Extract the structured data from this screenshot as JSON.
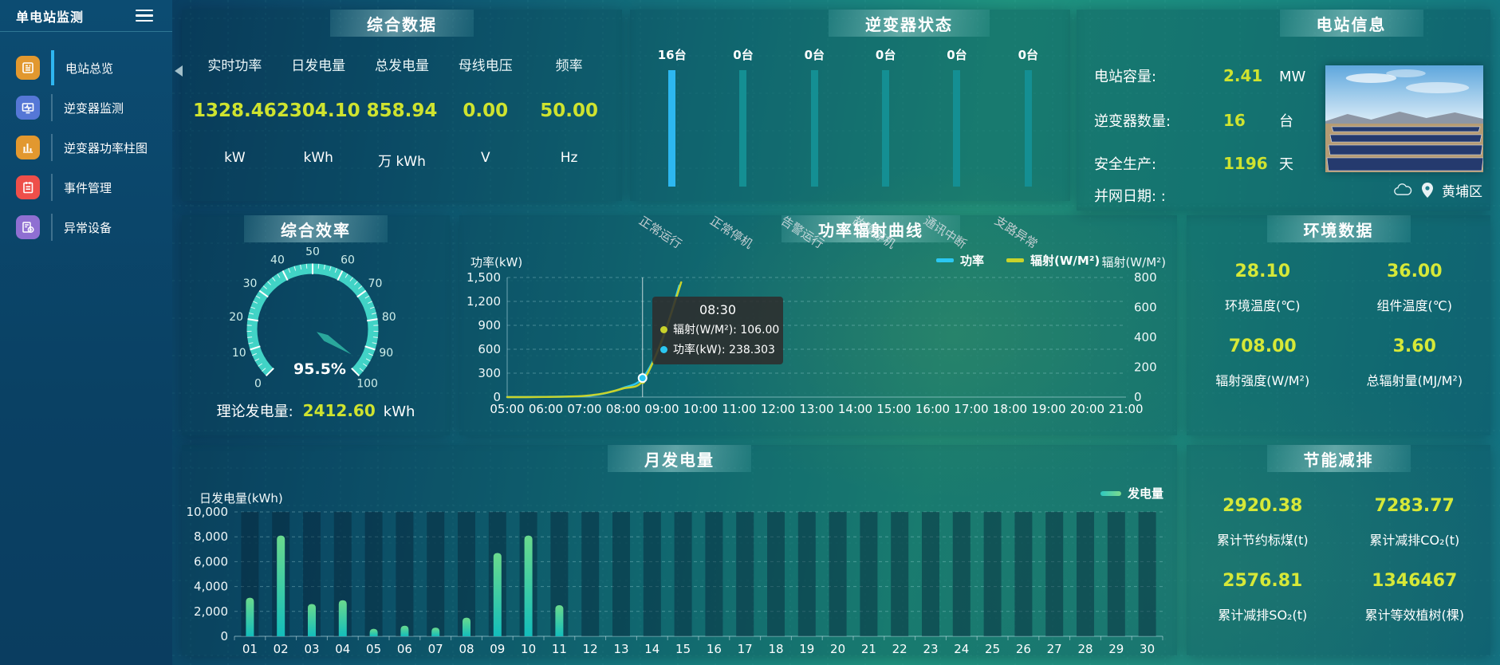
{
  "app": {
    "title": "单电站监测"
  },
  "sidebar": {
    "items": [
      {
        "label": "电站总览",
        "icon": "overview-icon",
        "color": "#e2982f",
        "active": true
      },
      {
        "label": "逆变器监测",
        "icon": "inverter-monitor-icon",
        "color": "#5577d6",
        "active": false
      },
      {
        "label": "逆变器功率柱图",
        "icon": "inverter-power-bars-icon",
        "color": "#e2982f",
        "active": false
      },
      {
        "label": "事件管理",
        "icon": "event-management-icon",
        "color": "#ee4f4a",
        "active": false
      },
      {
        "label": "异常设备",
        "icon": "abnormal-device-icon",
        "color": "#8f6fd2",
        "active": false
      }
    ]
  },
  "summary": {
    "title": "综合数据",
    "metrics": [
      {
        "label": "实时功率",
        "value": "1328.46",
        "unit": "kW"
      },
      {
        "label": "日发电量",
        "value": "2304.10",
        "unit": "kWh"
      },
      {
        "label": "总发电量",
        "value": "858.94",
        "unit": "万 kWh"
      },
      {
        "label": "母线电压",
        "value": "0.00",
        "unit": "V"
      },
      {
        "label": "频率",
        "value": "50.00",
        "unit": "Hz"
      }
    ]
  },
  "inverter_status": {
    "title": "逆变器状态",
    "bars": [
      {
        "count": "16台",
        "label": "正常运行",
        "highlight": true
      },
      {
        "count": "0台",
        "label": "正常停机",
        "highlight": false
      },
      {
        "count": "0台",
        "label": "告警运行",
        "highlight": false
      },
      {
        "count": "0台",
        "label": "故障停机",
        "highlight": false
      },
      {
        "count": "0台",
        "label": "通讯中断",
        "highlight": false
      },
      {
        "count": "0台",
        "label": "支路异常",
        "highlight": false
      }
    ]
  },
  "station_info": {
    "title": "电站信息",
    "rows": [
      {
        "label": "电站容量:",
        "value": "2.41",
        "unit": "MW"
      },
      {
        "label": "逆变器数量:",
        "value": "16",
        "unit": "台"
      },
      {
        "label": "安全生产:",
        "value": "1196",
        "unit": "天"
      },
      {
        "label": "并网日期: :",
        "value": "",
        "unit": ""
      }
    ],
    "location": "黄埔区"
  },
  "efficiency": {
    "title": "综合效率",
    "value_label": "95.5%",
    "theory_label": "理论发电量:",
    "theory_value": "2412.60",
    "theory_unit": "kWh"
  },
  "power_line": {
    "title": "功率辐射曲线"
  },
  "monthly": {
    "title": "月发电量"
  },
  "environment": {
    "title": "环境数据",
    "cells": [
      {
        "value": "28.10",
        "label": "环境温度(℃)"
      },
      {
        "value": "36.00",
        "label": "组件温度(℃)"
      },
      {
        "value": "708.00",
        "label": "辐射强度(W/M²)"
      },
      {
        "value": "3.60",
        "label": "总辐射量(MJ/M²)"
      }
    ]
  },
  "savings": {
    "title": "节能减排",
    "cells": [
      {
        "value": "2920.38",
        "label": "累计节约标煤(t)"
      },
      {
        "value": "7283.77",
        "label": "累计减排CO₂(t)"
      },
      {
        "value": "2576.81",
        "label": "累计减排SO₂(t)"
      },
      {
        "value": "1346467",
        "label": "累计等效植树(棵)"
      }
    ]
  },
  "chart_data": [
    {
      "type": "gauge",
      "title": "综合效率",
      "min": 0,
      "max": 100,
      "value": 95.5,
      "display": "95.5%",
      "major_ticks": [
        0,
        10,
        20,
        30,
        40,
        50,
        60,
        70,
        80,
        90,
        100
      ],
      "arc_color": "#41d3c6",
      "needle_color": "#2aa79c",
      "start_angle": 225,
      "end_angle": -45
    },
    {
      "type": "line",
      "title": "功率辐射曲线",
      "x_axis_labels": [
        "05:00",
        "06:00",
        "07:00",
        "08:00",
        "09:00",
        "10:00",
        "11:00",
        "12:00",
        "13:00",
        "14:00",
        "15:00",
        "16:00",
        "17:00",
        "18:00",
        "19:00",
        "20:00",
        "21:00"
      ],
      "xlim": [
        5,
        21
      ],
      "ylabel_left": "功率(kW)",
      "ylim_left": [
        0,
        1500
      ],
      "yticks_left": [
        "0",
        "300",
        "600",
        "900",
        "1,200",
        "1,500"
      ],
      "ylabel_right": "辐射(W/M²)",
      "ylim_right": [
        0,
        800
      ],
      "yticks_right": [
        "0",
        "200",
        "400",
        "600",
        "800"
      ],
      "legend": [
        {
          "name": "功率",
          "color": "#2bc7f2"
        },
        {
          "name": "辐射(W/M²)",
          "color": "#c9d32b"
        }
      ],
      "series": [
        {
          "name": "功率",
          "axis": "left",
          "color": "#2bc7f2",
          "points": [
            [
              5,
              0
            ],
            [
              5.5,
              0
            ],
            [
              6,
              3
            ],
            [
              6.5,
              6
            ],
            [
              7,
              12
            ],
            [
              7.5,
              45
            ],
            [
              8,
              115
            ],
            [
              8.5,
              238.3
            ],
            [
              9,
              700
            ],
            [
              9.45,
              1400
            ]
          ]
        },
        {
          "name": "辐射(W/M²)",
          "axis": "right",
          "color": "#c9d32b",
          "points": [
            [
              5,
              0
            ],
            [
              5.5,
              0
            ],
            [
              6,
              1
            ],
            [
              6.5,
              3
            ],
            [
              7,
              8
            ],
            [
              7.5,
              25
            ],
            [
              8,
              58
            ],
            [
              8.5,
              106
            ],
            [
              9,
              380
            ],
            [
              9.5,
              768
            ]
          ]
        }
      ],
      "tooltip": {
        "time": "08:30",
        "x": 8.5,
        "rows": [
          {
            "color": "#c9d32b",
            "label": "辐射(W/M²)",
            "value": "106.00"
          },
          {
            "color": "#2bc7f2",
            "label": "功率(kW)",
            "value": "238.303"
          }
        ]
      }
    },
    {
      "type": "bar",
      "title": "月发电量",
      "ylabel": "日发电量(kWh)",
      "legend": "发电量",
      "ylim": [
        0,
        10000
      ],
      "yticks": [
        "0",
        "2,000",
        "4,000",
        "6,000",
        "8,000",
        "10,000"
      ],
      "categories": [
        "01",
        "02",
        "03",
        "04",
        "05",
        "06",
        "07",
        "08",
        "09",
        "10",
        "11",
        "12",
        "13",
        "14",
        "15",
        "16",
        "17",
        "18",
        "19",
        "20",
        "21",
        "22",
        "23",
        "24",
        "25",
        "26",
        "27",
        "28",
        "29",
        "30"
      ],
      "values": [
        3100,
        8100,
        2600,
        2900,
        600,
        850,
        700,
        1500,
        6700,
        8100,
        2500,
        0,
        0,
        0,
        0,
        0,
        0,
        0,
        0,
        0,
        0,
        0,
        0,
        0,
        0,
        0,
        0,
        0,
        0,
        0
      ],
      "bar_colors": [
        "#14bdbb",
        "#6ada8d"
      ]
    }
  ]
}
